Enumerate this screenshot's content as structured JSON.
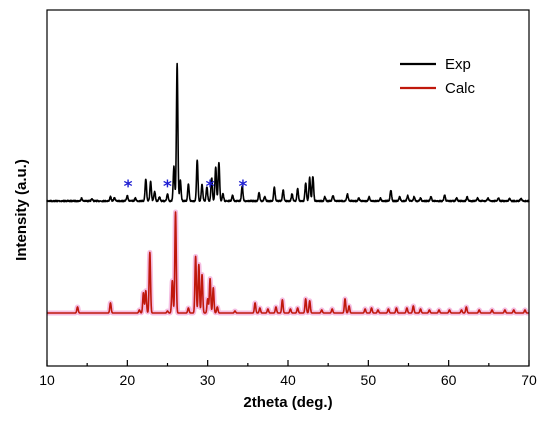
{
  "chart_data": {
    "type": "line",
    "xlabel": "2theta (deg.)",
    "ylabel": "Intensity (a.u.)",
    "xlim": [
      10,
      70
    ],
    "xticks": [
      "10",
      "20",
      "30",
      "40",
      "50",
      "60",
      "70"
    ],
    "yticks_shown": false,
    "grid": false,
    "legend_position": "top-right",
    "colors": {
      "exp": "#000000",
      "calc": "#c0180c",
      "calc_shadow": "#f2a8d8",
      "marker": "#1e1ed2"
    },
    "series": [
      {
        "name": "Exp",
        "baseline": 0,
        "peaks": [
          [
            14.3,
            0.02
          ],
          [
            15.6,
            0.015
          ],
          [
            17.9,
            0.03
          ],
          [
            18.4,
            0.025
          ],
          [
            20.0,
            0.04
          ],
          [
            21.0,
            0.02
          ],
          [
            22.3,
            0.16
          ],
          [
            22.9,
            0.14
          ],
          [
            23.4,
            0.07
          ],
          [
            24.0,
            0.03
          ],
          [
            25.0,
            0.05
          ],
          [
            25.8,
            0.25
          ],
          [
            26.2,
            1.0
          ],
          [
            26.6,
            0.15
          ],
          [
            27.6,
            0.12
          ],
          [
            28.7,
            0.3
          ],
          [
            29.3,
            0.12
          ],
          [
            29.9,
            0.1
          ],
          [
            30.5,
            0.17
          ],
          [
            31.0,
            0.25
          ],
          [
            31.4,
            0.28
          ],
          [
            31.9,
            0.05
          ],
          [
            33.1,
            0.04
          ],
          [
            34.3,
            0.11
          ],
          [
            36.4,
            0.06
          ],
          [
            37.1,
            0.03
          ],
          [
            38.3,
            0.1
          ],
          [
            39.4,
            0.08
          ],
          [
            40.5,
            0.05
          ],
          [
            41.2,
            0.09
          ],
          [
            42.2,
            0.13
          ],
          [
            42.7,
            0.17
          ],
          [
            43.1,
            0.18
          ],
          [
            44.6,
            0.03
          ],
          [
            45.6,
            0.04
          ],
          [
            47.4,
            0.05
          ],
          [
            48.8,
            0.02
          ],
          [
            50.1,
            0.03
          ],
          [
            51.5,
            0.02
          ],
          [
            52.8,
            0.08
          ],
          [
            53.9,
            0.03
          ],
          [
            54.9,
            0.04
          ],
          [
            55.7,
            0.03
          ],
          [
            56.5,
            0.02
          ],
          [
            57.8,
            0.03
          ],
          [
            59.5,
            0.04
          ],
          [
            61.0,
            0.02
          ],
          [
            62.3,
            0.03
          ],
          [
            63.6,
            0.02
          ],
          [
            64.9,
            0.02
          ],
          [
            66.2,
            0.02
          ],
          [
            67.6,
            0.02
          ],
          [
            69.0,
            0.02
          ]
        ]
      },
      {
        "name": "Calc",
        "baseline": 0,
        "peaks": [
          [
            13.8,
            0.06
          ],
          [
            17.9,
            0.1
          ],
          [
            21.5,
            0.03
          ],
          [
            22.0,
            0.2
          ],
          [
            22.3,
            0.22
          ],
          [
            22.8,
            0.6
          ],
          [
            25.0,
            0.02
          ],
          [
            25.6,
            0.32
          ],
          [
            26.0,
            1.0
          ],
          [
            27.6,
            0.05
          ],
          [
            28.5,
            0.56
          ],
          [
            28.9,
            0.48
          ],
          [
            29.3,
            0.38
          ],
          [
            30.0,
            0.14
          ],
          [
            30.3,
            0.34
          ],
          [
            30.7,
            0.25
          ],
          [
            31.2,
            0.06
          ],
          [
            33.4,
            0.02
          ],
          [
            35.9,
            0.1
          ],
          [
            36.5,
            0.05
          ],
          [
            37.5,
            0.04
          ],
          [
            38.5,
            0.06
          ],
          [
            39.3,
            0.13
          ],
          [
            40.3,
            0.04
          ],
          [
            41.2,
            0.05
          ],
          [
            42.2,
            0.14
          ],
          [
            42.7,
            0.12
          ],
          [
            44.2,
            0.03
          ],
          [
            45.5,
            0.04
          ],
          [
            47.1,
            0.14
          ],
          [
            47.6,
            0.07
          ],
          [
            49.6,
            0.04
          ],
          [
            50.4,
            0.05
          ],
          [
            51.2,
            0.03
          ],
          [
            52.5,
            0.04
          ],
          [
            53.5,
            0.05
          ],
          [
            54.8,
            0.05
          ],
          [
            55.6,
            0.07
          ],
          [
            56.5,
            0.04
          ],
          [
            57.6,
            0.03
          ],
          [
            58.8,
            0.03
          ],
          [
            60.1,
            0.03
          ],
          [
            61.6,
            0.03
          ],
          [
            62.2,
            0.06
          ],
          [
            63.8,
            0.03
          ],
          [
            65.4,
            0.03
          ],
          [
            67.0,
            0.03
          ],
          [
            68.1,
            0.03
          ],
          [
            69.5,
            0.03
          ]
        ]
      }
    ],
    "markers": {
      "symbol": "*",
      "x": [
        20.1,
        25.0,
        30.3,
        34.4
      ]
    }
  },
  "legend": [
    {
      "label": "Exp"
    },
    {
      "label": "Calc"
    }
  ]
}
